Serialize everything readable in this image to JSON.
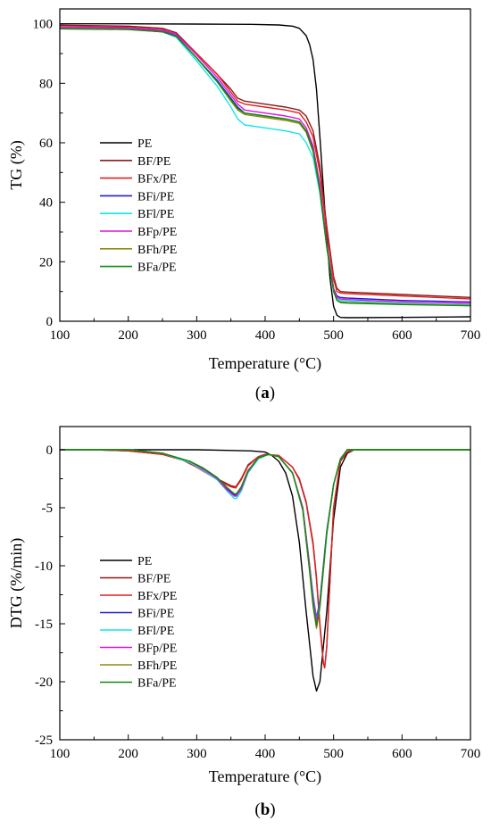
{
  "colors": {
    "PE": "#000000",
    "BF/PE": "#8B1A1A",
    "BFx/PE": "#E02020",
    "BFi/PE": "#1F1FD6",
    "BFl/PE": "#10E6E6",
    "BFp/PE": "#E010E0",
    "BFh/PE": "#8F8A10",
    "BFa/PE": "#0E8C0E"
  },
  "chart_data": [
    {
      "type": "line",
      "caption": {
        "open": "(",
        "letter": "a",
        "close": ")"
      },
      "xlabel": "Temperature (°C)",
      "ylabel": "TG (%)",
      "xlim": [
        100,
        700
      ],
      "ylim": [
        0,
        105
      ],
      "xticks": [
        100,
        200,
        300,
        400,
        500,
        600,
        700
      ],
      "yticks": [
        0,
        20,
        40,
        60,
        80,
        100
      ],
      "legend_position": "left",
      "series": [
        {
          "name": "PE",
          "x": [
            100,
            200,
            300,
            380,
            420,
            440,
            450,
            460,
            465,
            470,
            475,
            480,
            485,
            490,
            495,
            500,
            505,
            510,
            520,
            600,
            700
          ],
          "y": [
            100,
            100,
            99.9,
            99.8,
            99.6,
            99.2,
            98.5,
            96,
            93,
            88,
            78,
            62,
            45,
            28,
            14,
            5,
            2,
            1.3,
            1.2,
            1.3,
            1.5
          ]
        },
        {
          "name": "BF/PE",
          "x": [
            100,
            200,
            250,
            270,
            300,
            330,
            350,
            360,
            370,
            400,
            430,
            450,
            460,
            470,
            480,
            490,
            500,
            505,
            510,
            520,
            600,
            700
          ],
          "y": [
            99.5,
            99.2,
            98.5,
            97,
            90,
            83,
            78,
            75,
            74,
            73,
            72,
            71,
            69,
            64,
            52,
            32,
            15,
            11,
            10,
            9.8,
            9,
            8
          ]
        },
        {
          "name": "BFx/PE",
          "x": [
            100,
            200,
            250,
            270,
            300,
            330,
            350,
            360,
            370,
            400,
            430,
            450,
            460,
            470,
            480,
            490,
            500,
            505,
            510,
            520,
            600,
            700
          ],
          "y": [
            99,
            98.8,
            98,
            96.5,
            90,
            83,
            77,
            74,
            73,
            72,
            71,
            70,
            67,
            62,
            50,
            30,
            14,
            10,
            9.5,
            9.3,
            8.5,
            7.5
          ]
        },
        {
          "name": "BFi/PE",
          "x": [
            100,
            200,
            250,
            270,
            300,
            330,
            350,
            360,
            370,
            400,
            430,
            450,
            460,
            470,
            480,
            490,
            500,
            505,
            510,
            520,
            600,
            700
          ],
          "y": [
            98.5,
            98.3,
            97.5,
            96,
            88.5,
            81,
            75,
            72,
            70,
            69,
            68,
            67,
            64,
            58,
            45,
            26,
            11,
            8.5,
            8,
            7.8,
            7,
            6.5
          ]
        },
        {
          "name": "BFl/PE",
          "x": [
            100,
            200,
            250,
            270,
            300,
            330,
            350,
            360,
            370,
            400,
            430,
            450,
            460,
            470,
            480,
            490,
            500,
            505,
            510,
            520,
            600,
            700
          ],
          "y": [
            98.5,
            98.2,
            97.3,
            95.5,
            87.5,
            79,
            72,
            68,
            66,
            65,
            64,
            63,
            60,
            55,
            43,
            25,
            10,
            7.5,
            7,
            6.8,
            6,
            5.5
          ]
        },
        {
          "name": "BFp/PE",
          "x": [
            100,
            200,
            250,
            270,
            300,
            330,
            350,
            360,
            370,
            400,
            430,
            450,
            460,
            470,
            480,
            490,
            500,
            505,
            510,
            520,
            600,
            700
          ],
          "y": [
            98.8,
            98.6,
            97.8,
            96.5,
            89.5,
            82,
            76,
            73,
            71,
            70,
            69,
            68,
            65,
            59,
            46,
            26,
            11,
            8,
            7.5,
            7.3,
            6.5,
            6
          ]
        },
        {
          "name": "BFh/PE",
          "x": [
            100,
            200,
            250,
            270,
            300,
            330,
            350,
            360,
            370,
            400,
            430,
            450,
            460,
            470,
            480,
            490,
            500,
            505,
            510,
            520,
            600,
            700
          ],
          "y": [
            98.3,
            98.1,
            97.3,
            95.8,
            88.5,
            80.5,
            74,
            71,
            69.5,
            68.5,
            67.5,
            66.5,
            63.5,
            57,
            44,
            25,
            10,
            7,
            6.5,
            6.3,
            5.8,
            5.3
          ]
        },
        {
          "name": "BFa/PE",
          "x": [
            100,
            200,
            250,
            270,
            300,
            330,
            350,
            360,
            370,
            400,
            430,
            450,
            460,
            470,
            480,
            490,
            500,
            505,
            510,
            520,
            600,
            700
          ],
          "y": [
            98.3,
            98.1,
            97.3,
            95.8,
            88.5,
            80.5,
            74.5,
            71.5,
            70,
            69,
            68,
            67,
            64,
            57.5,
            44,
            25,
            10,
            7,
            6.3,
            6.1,
            5.6,
            5.2
          ]
        }
      ]
    },
    {
      "type": "line",
      "caption": {
        "open": "(",
        "letter": "b",
        "close": ")"
      },
      "xlabel": "Temperature (°C)",
      "ylabel": "DTG (%/min)",
      "xlim": [
        100,
        700
      ],
      "ylim": [
        -25,
        2
      ],
      "xticks": [
        100,
        200,
        300,
        400,
        500,
        600,
        700
      ],
      "yticks": [
        0,
        -5,
        -10,
        -15,
        -20,
        -25
      ],
      "legend_position": "left",
      "series": [
        {
          "name": "PE",
          "x": [
            100,
            300,
            380,
            400,
            410,
            420,
            430,
            440,
            450,
            460,
            470,
            475,
            480,
            490,
            500,
            510,
            520,
            530,
            600,
            700
          ],
          "y": [
            0,
            0,
            -0.1,
            -0.2,
            -0.5,
            -1,
            -2,
            -4,
            -8,
            -14,
            -19.5,
            -20.8,
            -20,
            -14,
            -6,
            -1.5,
            -0.3,
            0,
            0,
            0
          ]
        },
        {
          "name": "BF/PE",
          "x": [
            100,
            150,
            200,
            250,
            280,
            300,
            320,
            340,
            350,
            357,
            365,
            375,
            390,
            400,
            420,
            440,
            450,
            460,
            470,
            475,
            480,
            485,
            487,
            490,
            495,
            500,
            510,
            520,
            530,
            600,
            700
          ],
          "y": [
            0,
            0,
            -0.1,
            -0.4,
            -0.9,
            -1.5,
            -2.2,
            -2.8,
            -3.1,
            -3.2,
            -2.5,
            -1.3,
            -0.6,
            -0.4,
            -0.5,
            -1.5,
            -2.5,
            -4.5,
            -8,
            -11,
            -15,
            -18.3,
            -18.8,
            -17,
            -11,
            -5,
            -1,
            -0.2,
            0,
            0,
            0
          ]
        },
        {
          "name": "BFx/PE",
          "x": [
            100,
            150,
            200,
            250,
            280,
            300,
            320,
            340,
            350,
            357,
            365,
            375,
            390,
            400,
            420,
            440,
            450,
            460,
            470,
            475,
            480,
            485,
            487,
            490,
            495,
            500,
            510,
            520,
            530,
            600,
            700
          ],
          "y": [
            0,
            0,
            -0.1,
            -0.4,
            -0.9,
            -1.5,
            -2.2,
            -2.9,
            -3.2,
            -3.3,
            -2.6,
            -1.4,
            -0.6,
            -0.4,
            -0.5,
            -1.5,
            -2.6,
            -4.6,
            -8.2,
            -11.2,
            -15.2,
            -18.4,
            -18.8,
            -17,
            -11,
            -5,
            -1,
            -0.2,
            0,
            0,
            0
          ]
        },
        {
          "name": "BFi/PE",
          "x": [
            100,
            200,
            250,
            290,
            310,
            330,
            345,
            355,
            358,
            365,
            375,
            390,
            405,
            420,
            440,
            455,
            465,
            470,
            475,
            480,
            490,
            500,
            510,
            520,
            600,
            700
          ],
          "y": [
            0,
            0,
            -0.3,
            -1,
            -1.6,
            -2.4,
            -3.4,
            -3.9,
            -3.9,
            -3.3,
            -1.8,
            -0.7,
            -0.4,
            -0.6,
            -2,
            -5,
            -10,
            -12.5,
            -14.5,
            -13,
            -7,
            -3,
            -0.8,
            0,
            0,
            0
          ]
        },
        {
          "name": "BFl/PE",
          "x": [
            100,
            200,
            250,
            290,
            310,
            330,
            345,
            355,
            358,
            365,
            375,
            390,
            405,
            420,
            440,
            455,
            465,
            470,
            475,
            480,
            490,
            500,
            510,
            520,
            600,
            700
          ],
          "y": [
            0,
            0,
            -0.3,
            -1.1,
            -1.8,
            -2.6,
            -3.6,
            -4.2,
            -4.2,
            -3.6,
            -2,
            -0.8,
            -0.4,
            -0.6,
            -2,
            -5,
            -10,
            -12.6,
            -14.7,
            -13.2,
            -7.1,
            -3,
            -0.8,
            0,
            0,
            0
          ]
        },
        {
          "name": "BFp/PE",
          "x": [
            100,
            200,
            250,
            290,
            310,
            330,
            345,
            355,
            358,
            365,
            375,
            390,
            405,
            420,
            440,
            455,
            465,
            470,
            475,
            480,
            490,
            500,
            510,
            520,
            600,
            700
          ],
          "y": [
            0,
            0,
            -0.3,
            -1,
            -1.7,
            -2.5,
            -3.5,
            -4,
            -4,
            -3.4,
            -1.9,
            -0.7,
            -0.4,
            -0.6,
            -2,
            -5,
            -10,
            -12.8,
            -14.8,
            -13.3,
            -7.2,
            -3,
            -0.8,
            0,
            0,
            0
          ]
        },
        {
          "name": "BFh/PE",
          "x": [
            100,
            200,
            250,
            290,
            310,
            330,
            345,
            355,
            358,
            365,
            375,
            390,
            405,
            420,
            440,
            455,
            465,
            470,
            475,
            480,
            490,
            500,
            510,
            520,
            600,
            700
          ],
          "y": [
            0,
            0,
            -0.3,
            -1,
            -1.6,
            -2.4,
            -3.3,
            -3.8,
            -3.8,
            -3.2,
            -1.8,
            -0.7,
            -0.4,
            -0.6,
            -2,
            -5.2,
            -10.5,
            -13.5,
            -15.4,
            -13.6,
            -7.3,
            -3,
            -0.8,
            0,
            0,
            0
          ]
        },
        {
          "name": "BFa/PE",
          "x": [
            100,
            200,
            250,
            290,
            310,
            330,
            345,
            355,
            358,
            365,
            375,
            390,
            405,
            420,
            440,
            455,
            465,
            470,
            475,
            480,
            490,
            500,
            510,
            520,
            600,
            700
          ],
          "y": [
            0,
            0,
            -0.3,
            -1,
            -1.6,
            -2.4,
            -3.3,
            -3.8,
            -3.8,
            -3.2,
            -1.8,
            -0.7,
            -0.4,
            -0.6,
            -2,
            -5.2,
            -10.4,
            -13.3,
            -15.2,
            -13.5,
            -7.2,
            -3,
            -0.8,
            0,
            0,
            0
          ]
        }
      ]
    }
  ]
}
